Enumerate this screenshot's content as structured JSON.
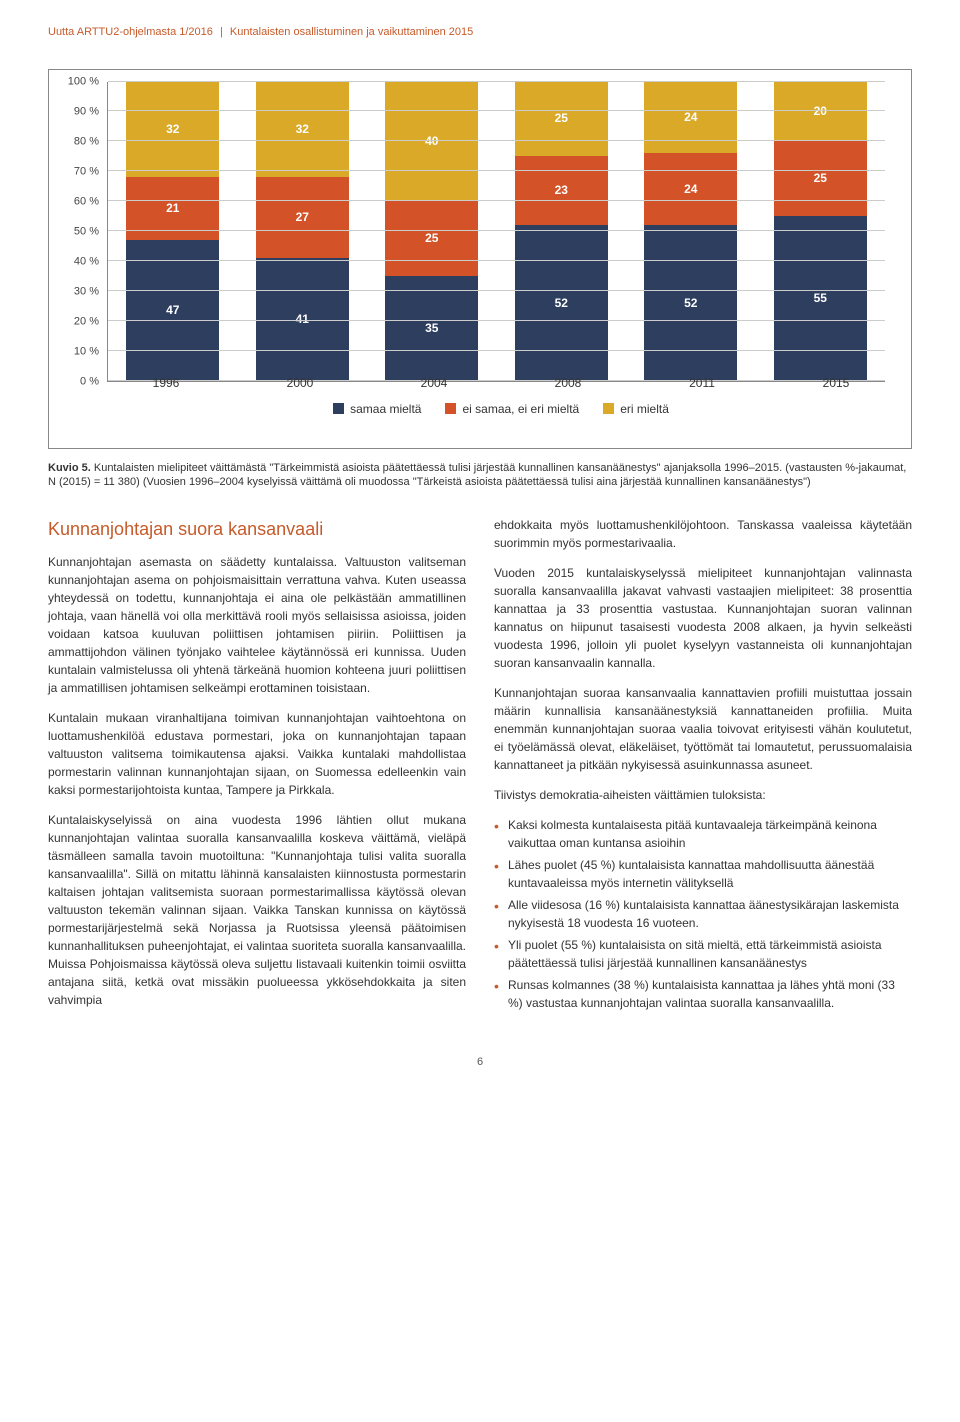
{
  "header": {
    "left": "Uutta ARTTU2-ohjelmasta 1/2016",
    "right": "Kuntalaisten osallistuminen ja vaikuttaminen 2015"
  },
  "chart": {
    "type": "stacked_bar",
    "y_ticks": [
      0,
      10,
      20,
      30,
      40,
      50,
      60,
      70,
      80,
      90,
      100
    ],
    "y_suffix": " %",
    "x_labels": [
      "1996",
      "2000",
      "2004",
      "2008",
      "2011",
      "2015"
    ],
    "series": [
      {
        "key": "samaa",
        "label": "samaa mieltä",
        "color": "#2d3e5f"
      },
      {
        "key": "ei_samaa",
        "label": "ei samaa, ei eri mieltä",
        "color": "#d35227"
      },
      {
        "key": "eri",
        "label": "eri mieltä",
        "color": "#dba928"
      }
    ],
    "data": [
      {
        "samaa": 47,
        "ei_samaa": 21,
        "eri": 32
      },
      {
        "samaa": 41,
        "ei_samaa": 27,
        "eri": 32
      },
      {
        "samaa": 35,
        "ei_samaa": 25,
        "eri": 40
      },
      {
        "samaa": 52,
        "ei_samaa": 23,
        "eri": 25
      },
      {
        "samaa": 52,
        "ei_samaa": 24,
        "eri": 24
      },
      {
        "samaa": 55,
        "ei_samaa": 25,
        "eri": 20
      }
    ],
    "grid_color": "#cccccc",
    "plot_bg": "#ffffff"
  },
  "caption": {
    "lead": "Kuvio 5.",
    "line1": "Kuntalaisten mielipiteet väittämästä \"Tärkeimmistä asioista päätettäessä tulisi järjestää kunnallinen kansanäänestys\" ajanjaksolla 1996–2015.",
    "line2": "(vastausten %-jakaumat, N (2015) = 11 380) (Vuosien 1996–2004 kyselyissä väittämä oli muodossa \"Tärkeistä asioista päätettäessä tulisi aina järjestää kunnallinen kansanäänestys\")"
  },
  "left_col": {
    "heading": "Kunnanjohtajan suora kansanvaali",
    "p1": "Kunnanjohtajan asemasta on säädetty kuntalaissa. Valtuuston valitseman kunnanjohtajan asema on pohjoismaisittain verrattuna vahva. Kuten useassa yhteydessä on todettu, kunnanjohtaja ei aina ole pelkästään ammatillinen johtaja, vaan hänellä voi olla merkittävä rooli myös sellaisissa asioissa, joiden voidaan katsoa kuuluvan poliittisen johtamisen piiriin. Poliittisen ja ammattijohdon välinen työnjako vaihtelee käytännössä eri kunnissa. Uuden kuntalain valmistelussa oli yhtenä tärkeänä huomion kohteena juuri poliittisen ja ammatillisen johtamisen selkeämpi erottaminen toisistaan.",
    "p2": "Kuntalain mukaan viranhaltijana toimivan kunnanjohtajan vaihtoehtona on luottamushenkilöä edustava pormestari, joka on kunnanjohtajan tapaan valtuuston valitsema toimikautensa ajaksi. Vaikka kuntalaki mahdollistaa pormestarin valinnan kunnanjohtajan sijaan, on Suomessa edelleenkin vain kaksi pormestarijohtoista kuntaa, Tampere ja Pirkkala.",
    "p3": "Kuntalaiskyselyissä on aina vuodesta 1996 lähtien ollut mukana kunnanjohtajan valintaa suoralla kansanvaalilla koskeva väittämä, vieläpä täsmälleen samalla tavoin muotoiltuna: \"Kunnanjohtaja tulisi valita suoralla kansanvaalilla\". Sillä on mitattu lähinnä kansalaisten kiinnostusta pormestarin kaltaisen johtajan valitsemista suoraan pormestarimallissa käytössä olevan valtuuston tekemän valinnan sijaan.  Vaikka Tanskan kunnissa on käytössä pormestarijärjestelmä sekä Norjassa ja Ruotsissa yleensä päätoimisen kunnanhallituksen puheenjohtajat, ei valintaa suoriteta suoralla kansanvaalilla. Muissa Pohjoismaissa käytössä oleva suljettu listavaali kuitenkin toimii osviitta antajana siitä, ketkä ovat missäkin puolueessa ykkösehdokkaita ja siten vahvimpia"
  },
  "right_col": {
    "p1": "ehdokkaita myös luottamushenkilöjohtoon. Tanskassa vaaleissa käytetään suorimmin myös pormestarivaalia.",
    "p2": "Vuoden 2015 kuntalaiskyselyssä mielipiteet kunnanjohtajan valinnasta suoralla kansanvaalilla jakavat vahvasti vastaajien mielipiteet: 38 prosenttia kannattaa ja 33 prosenttia vastustaa. Kunnanjohtajan suoran valinnan kannatus on hiipunut tasaisesti vuodesta 2008 alkaen, ja hyvin selkeästi vuodesta 1996, jolloin yli puolet kyselyyn vastanneista oli kunnanjohtajan suoran kansanvaalin kannalla.",
    "p3": "Kunnanjohtajan suoraa kansanvaalia kannattavien profiili muistuttaa jossain määrin kunnallisia kansanäänestyksiä kannattaneiden profiilia. Muita enemmän kunnanjohtajan suoraa vaalia toivovat erityisesti vähän koulutetut, ei työelämässä olevat, eläkeläiset, työttömät tai lomautetut, perussuomalaisia kannattaneet ja pitkään nykyisessä asuinkunnassa asuneet.",
    "summary_lead": "Tiivistys demokratia-aiheisten väittämien tuloksista:",
    "bullets": [
      "Kaksi kolmesta kuntalaisesta pitää kuntavaaleja tärkeimpänä keinona vaikuttaa oman kuntansa asioihin",
      "Lähes puolet (45 %) kuntalaisista kannattaa mahdollisuutta äänestää kuntavaaleissa myös internetin välityksellä",
      "Alle viidesosa (16 %) kuntalaisista kannattaa äänestysikärajan laskemista nykyisestä 18 vuodesta 16 vuoteen.",
      "Yli puolet (55 %) kuntalaisista on sitä mieltä, että tärkeimmistä asioista päätettäessä tulisi järjestää kunnallinen kansanäänestys",
      "Runsas kolmannes (38 %) kuntalaisista kannattaa ja lähes yhtä moni (33 %) vastustaa kunnanjohtajan valintaa suoralla kansanvaalilla."
    ]
  },
  "page_number": "6"
}
